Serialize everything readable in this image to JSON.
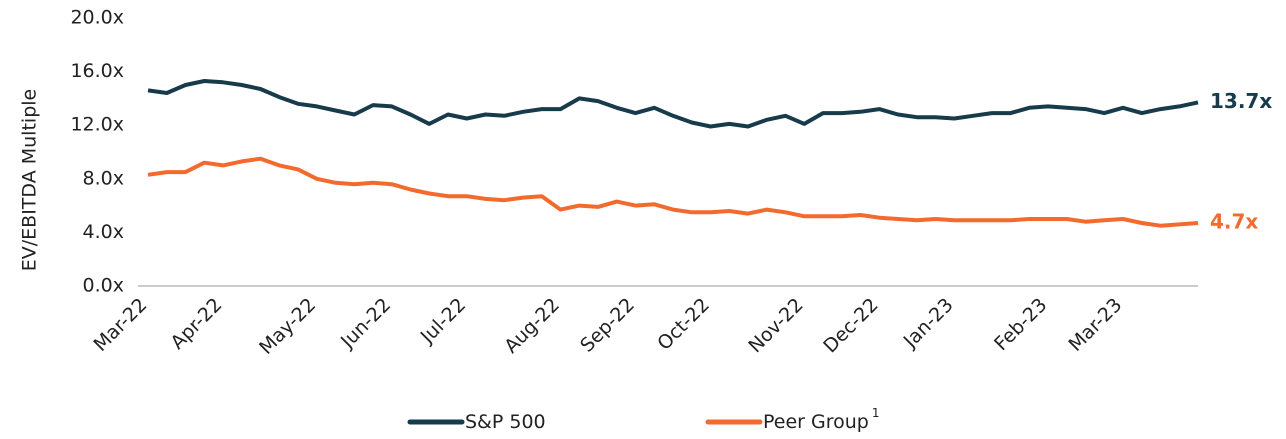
{
  "chart_data": {
    "type": "line",
    "y_axis_label": "EV/EBITDA Multiple",
    "categories": [
      "Mar-22",
      null,
      null,
      null,
      "Apr-22",
      null,
      null,
      null,
      null,
      "May-22",
      null,
      null,
      null,
      "Jun-22",
      null,
      null,
      null,
      "Jul-22",
      null,
      null,
      null,
      null,
      "Aug-22",
      null,
      null,
      null,
      "Sep-22",
      null,
      null,
      null,
      "Oct-22",
      null,
      null,
      null,
      null,
      "Nov-22",
      null,
      null,
      null,
      "Dec-22",
      null,
      null,
      null,
      "Jan-23",
      null,
      null,
      null,
      null,
      "Feb-23",
      null,
      null,
      null,
      "Mar-23",
      null,
      null,
      null,
      null
    ],
    "series": [
      {
        "name": "S&P 500",
        "color": "#173b4b",
        "values": [
          14.6,
          14.4,
          15.0,
          15.3,
          15.2,
          15.0,
          14.7,
          14.1,
          13.6,
          13.4,
          13.1,
          12.8,
          13.5,
          13.4,
          12.8,
          12.1,
          12.8,
          12.5,
          12.8,
          12.7,
          13.0,
          13.2,
          13.2,
          14.0,
          13.8,
          13.3,
          12.9,
          13.3,
          12.7,
          12.2,
          11.9,
          12.1,
          11.9,
          12.4,
          12.7,
          12.1,
          12.9,
          12.9,
          13.0,
          13.2,
          12.8,
          12.6,
          12.6,
          12.5,
          12.7,
          12.9,
          12.9,
          13.3,
          13.4,
          13.3,
          13.2,
          12.9,
          13.3,
          12.9,
          13.2,
          13.4,
          13.7
        ],
        "value_labels": [
          null,
          null,
          null,
          null,
          null,
          null,
          null,
          null,
          null,
          null,
          null,
          null,
          null,
          null,
          null,
          null,
          null,
          null,
          null,
          null,
          null,
          null,
          null,
          null,
          null,
          null,
          null,
          null,
          null,
          null,
          null,
          null,
          null,
          null,
          null,
          null,
          null,
          null,
          null,
          null,
          null,
          null,
          null,
          null,
          null,
          null,
          null,
          null,
          null,
          null,
          null,
          null,
          null,
          null,
          null,
          null,
          "13.7x"
        ]
      },
      {
        "name": "Peer Group",
        "footnote": "1",
        "color": "#f26a2e",
        "values": [
          8.3,
          8.5,
          8.5,
          9.2,
          9.0,
          9.3,
          9.5,
          9.0,
          8.7,
          8.0,
          7.7,
          7.6,
          7.7,
          7.6,
          7.2,
          6.9,
          6.7,
          6.7,
          6.5,
          6.4,
          6.6,
          6.7,
          5.7,
          6.0,
          5.9,
          6.3,
          6.0,
          6.1,
          5.7,
          5.5,
          5.5,
          5.6,
          5.4,
          5.7,
          5.5,
          5.2,
          5.2,
          5.2,
          5.3,
          5.1,
          5.0,
          4.9,
          5.0,
          4.9,
          4.9,
          4.9,
          4.9,
          5.0,
          5.0,
          5.0,
          4.8,
          4.9,
          5.0,
          4.7,
          4.5,
          4.6,
          4.7
        ],
        "value_labels": [
          null,
          null,
          null,
          null,
          null,
          null,
          null,
          null,
          null,
          null,
          null,
          null,
          null,
          null,
          null,
          null,
          null,
          null,
          null,
          null,
          null,
          null,
          null,
          null,
          null,
          null,
          null,
          null,
          null,
          null,
          null,
          null,
          null,
          null,
          null,
          null,
          null,
          null,
          null,
          null,
          null,
          null,
          null,
          null,
          null,
          null,
          null,
          null,
          null,
          null,
          null,
          null,
          null,
          null,
          null,
          null,
          "4.7x"
        ]
      }
    ],
    "ylim": [
      0,
      20
    ],
    "yticks": [
      {
        "value": 0,
        "label": "0.0x"
      },
      {
        "value": 4,
        "label": "4.0x"
      },
      {
        "value": 8,
        "label": "8.0x"
      },
      {
        "value": 12,
        "label": "12.0x"
      },
      {
        "value": 16,
        "label": "16.0x"
      },
      {
        "value": 20,
        "label": "20.0x"
      }
    ],
    "grid": false
  }
}
